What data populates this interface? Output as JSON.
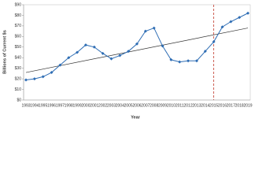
{
  "chart_data": {
    "type": "line",
    "x_label": "Year",
    "y_label": "Billions of Current $s",
    "categories": [
      "1993",
      "1994",
      "1995",
      "1996",
      "1997",
      "1998",
      "1999",
      "2000",
      "2001",
      "2002",
      "2003",
      "2004",
      "2005",
      "2006",
      "2007",
      "2008",
      "2009",
      "2010",
      "2011",
      "2012",
      "2013",
      "2014",
      "2015",
      "2016",
      "2017",
      "2018",
      "2019"
    ],
    "series": [
      {
        "color": "#2e6db4",
        "values": [
          19,
          20,
          22,
          26,
          33,
          40,
          45,
          52,
          50,
          44,
          39,
          42,
          46,
          53,
          65,
          68,
          51,
          38,
          36,
          37,
          37,
          46,
          55,
          69,
          74,
          78,
          82
        ]
      }
    ],
    "trend": {
      "start": 26,
      "end": 68,
      "color": "#333333"
    },
    "marker_category": "2015",
    "marker_color": "#c0392b",
    "ylim": [
      0,
      90
    ],
    "yticks": [
      {
        "value": 0,
        "label": "$0"
      },
      {
        "value": 10,
        "label": "$10"
      },
      {
        "value": 20,
        "label": "$20"
      },
      {
        "value": 30,
        "label": "$30"
      },
      {
        "value": 40,
        "label": "$40"
      },
      {
        "value": 50,
        "label": "$50"
      },
      {
        "value": 60,
        "label": "$60"
      },
      {
        "value": 70,
        "label": "$70"
      },
      {
        "value": 80,
        "label": "$80"
      },
      {
        "value": 90,
        "label": "$90"
      }
    ],
    "grid": false
  }
}
